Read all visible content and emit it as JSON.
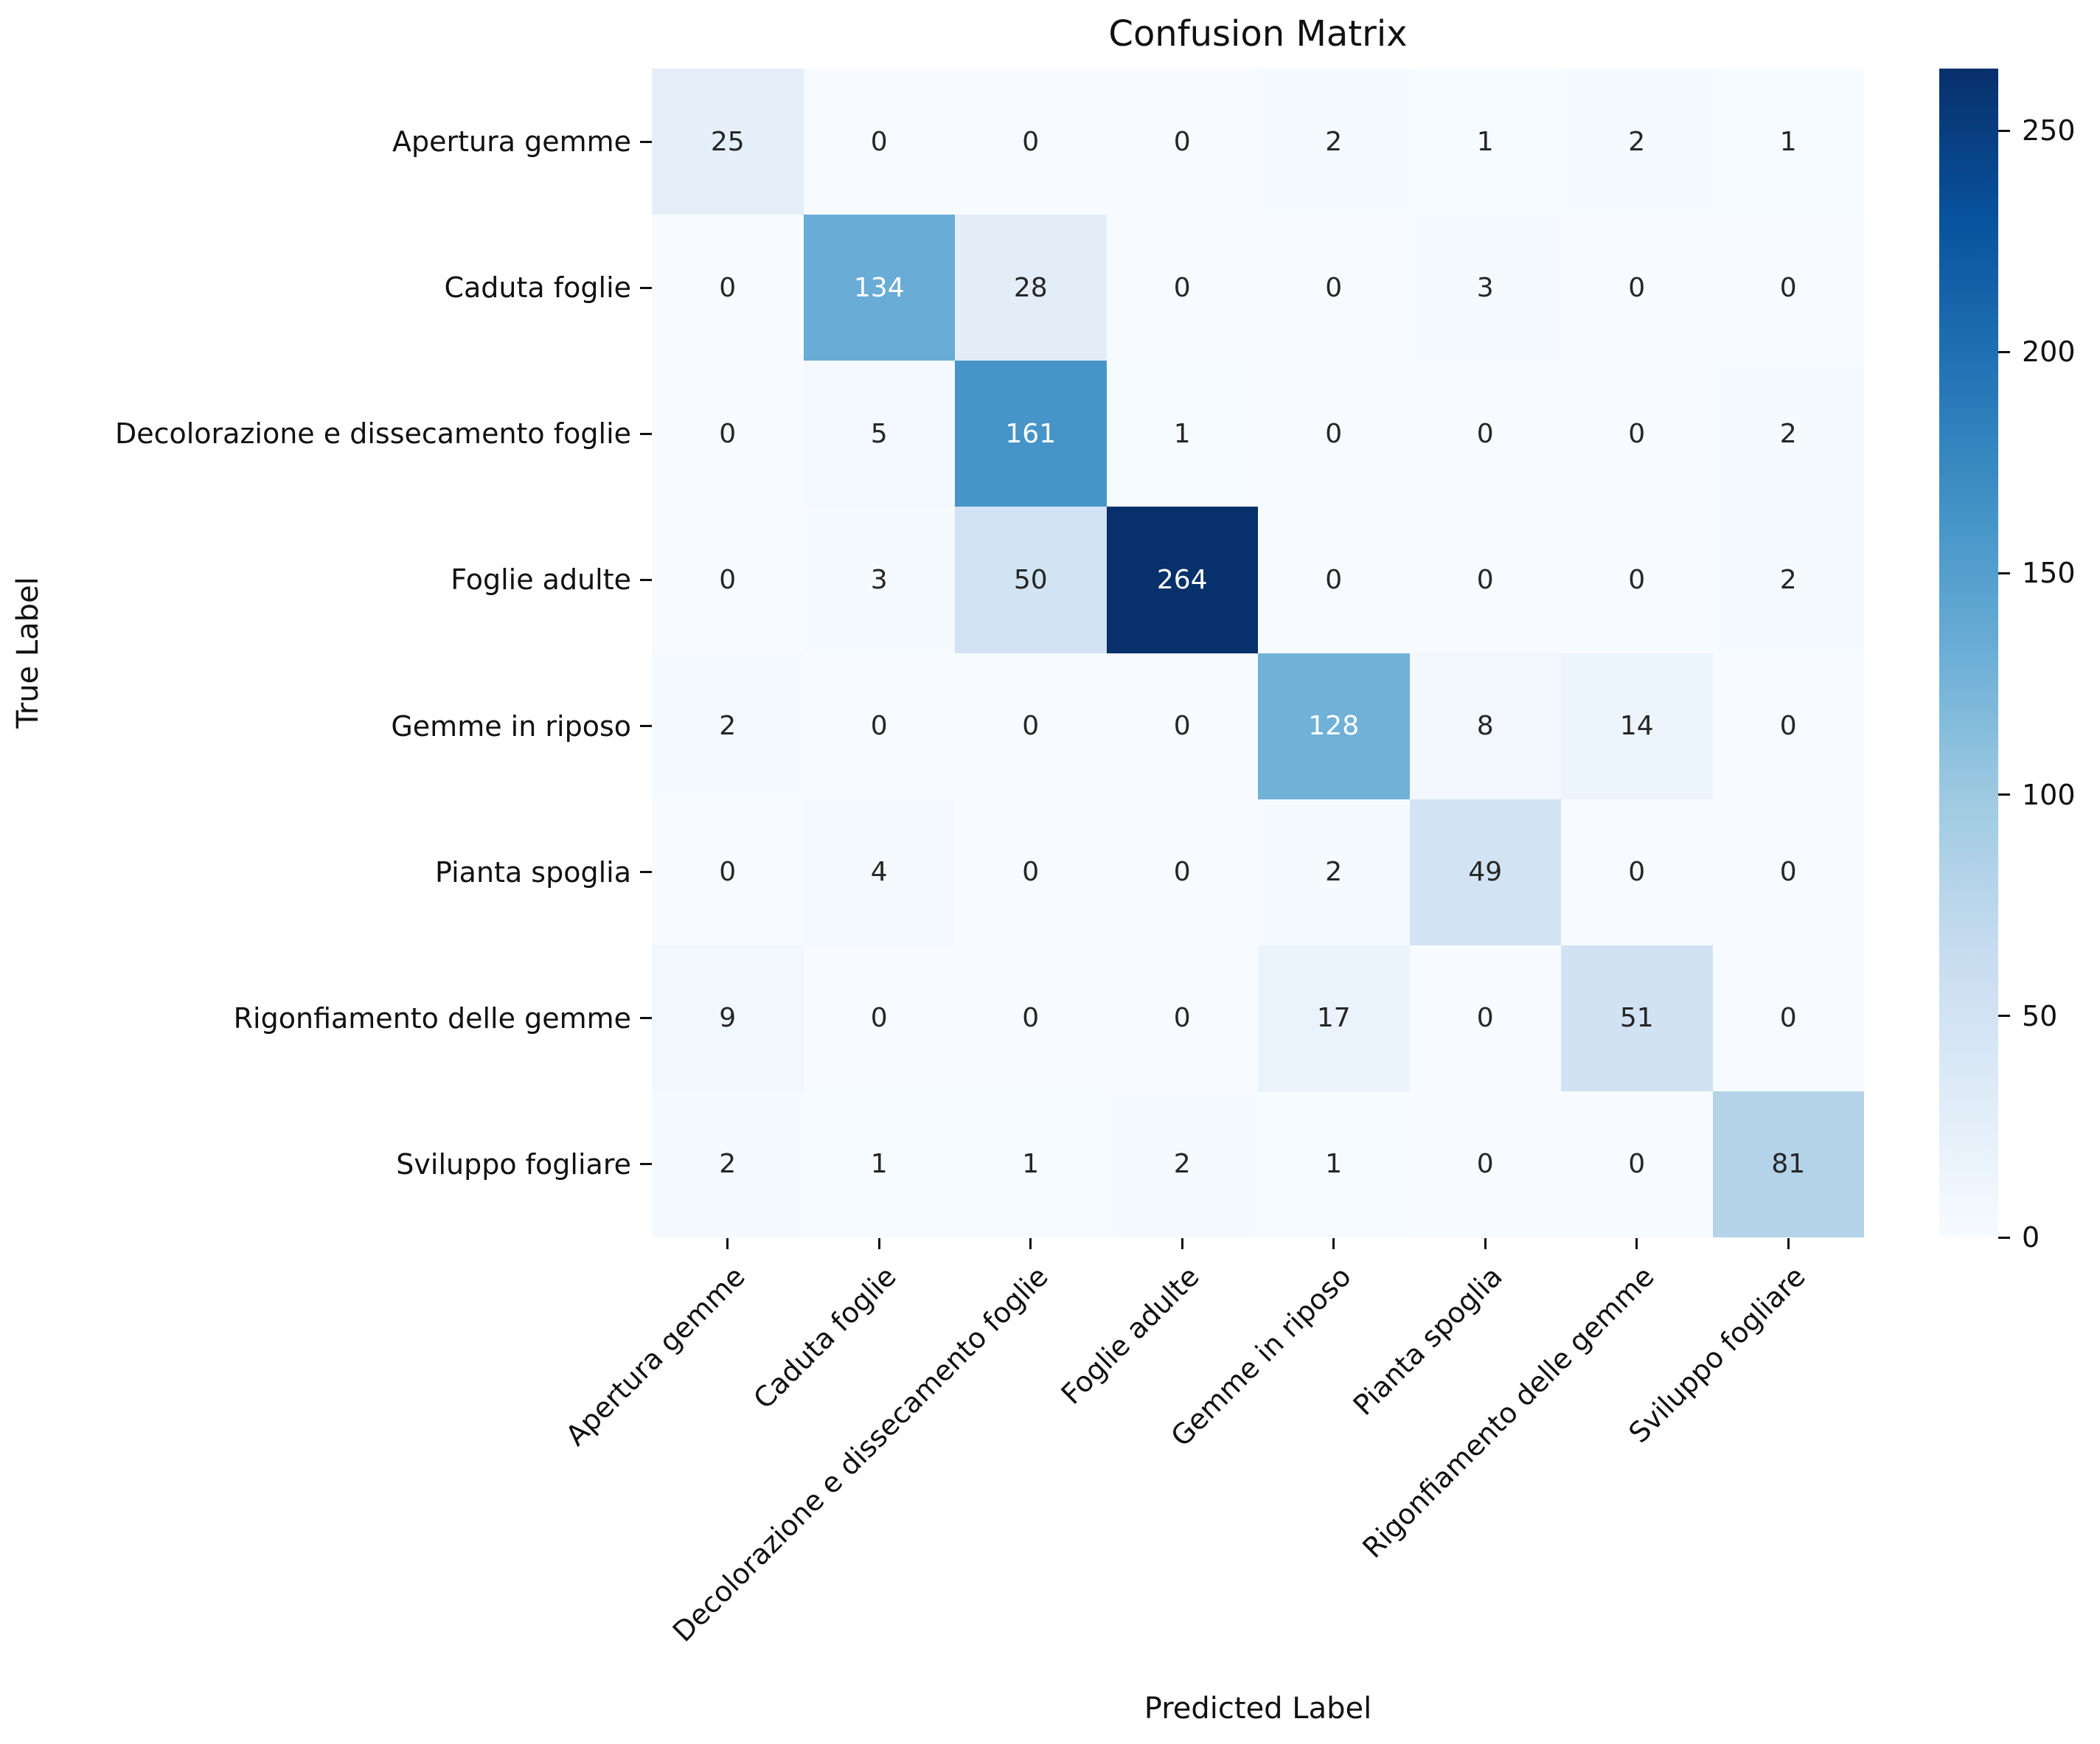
{
  "chart_data": {
    "type": "heatmap",
    "title": "Confusion Matrix",
    "xlabel": "Predicted Label",
    "ylabel": "True Label",
    "categories": [
      "Apertura gemme",
      "Caduta foglie",
      "Decolorazione e dissecamento foglie",
      "Foglie adulte",
      "Gemme in riposo",
      "Pianta spoglia",
      "Rigonfiamento delle gemme",
      "Sviluppo fogliare"
    ],
    "matrix": [
      [
        25,
        0,
        0,
        0,
        2,
        1,
        2,
        1
      ],
      [
        0,
        134,
        28,
        0,
        0,
        3,
        0,
        0
      ],
      [
        0,
        5,
        161,
        1,
        0,
        0,
        0,
        2
      ],
      [
        0,
        3,
        50,
        264,
        0,
        0,
        0,
        2
      ],
      [
        2,
        0,
        0,
        0,
        128,
        8,
        14,
        0
      ],
      [
        0,
        4,
        0,
        0,
        2,
        49,
        0,
        0
      ],
      [
        9,
        0,
        0,
        0,
        17,
        0,
        51,
        0
      ],
      [
        2,
        1,
        1,
        2,
        1,
        0,
        0,
        81
      ]
    ],
    "vmin": 0,
    "vmax": 264,
    "colormap": "Blues",
    "colorbar_ticks": [
      0,
      50,
      100,
      150,
      200,
      250
    ],
    "legend_position": "right-colorbar",
    "grid": false,
    "x_tick_rotation_deg": 45
  },
  "colors": {
    "background": "#ffffff",
    "cmap_stops": [
      "#f7fbff",
      "#deebf7",
      "#c6dbef",
      "#9ecae1",
      "#6baed6",
      "#4292c6",
      "#2171b5",
      "#08519c",
      "#08306b"
    ],
    "annotation_dark": "#262626",
    "annotation_light": "#ffffff",
    "axis_text": "#111111"
  }
}
